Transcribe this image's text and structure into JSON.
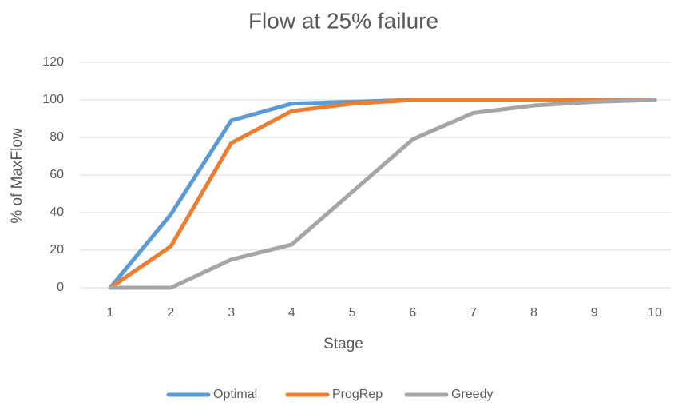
{
  "chart_data": {
    "type": "line",
    "title": "Flow at 25% failure",
    "x_label": "Stage",
    "y_label": "% of MaxFlow",
    "categories": [
      "1",
      "2",
      "3",
      "4",
      "5",
      "6",
      "7",
      "8",
      "9",
      "10"
    ],
    "series": [
      {
        "name": "Optimal",
        "color": "#5b9bd5",
        "values": [
          0,
          39,
          89,
          98,
          99,
          100,
          100,
          100,
          100,
          100
        ]
      },
      {
        "name": "ProgRep",
        "color": "#ed7d31",
        "values": [
          0,
          22,
          77,
          94,
          98,
          100,
          100,
          100,
          100,
          100
        ]
      },
      {
        "name": "Greedy",
        "color": "#a5a5a5",
        "values": [
          0,
          0,
          15,
          23,
          51,
          79,
          93,
          97,
          99,
          100
        ]
      }
    ],
    "ylim": [
      0,
      120
    ],
    "yticks": [
      0,
      20,
      40,
      60,
      80,
      100,
      120
    ],
    "grid": true,
    "legend": "bottom"
  }
}
